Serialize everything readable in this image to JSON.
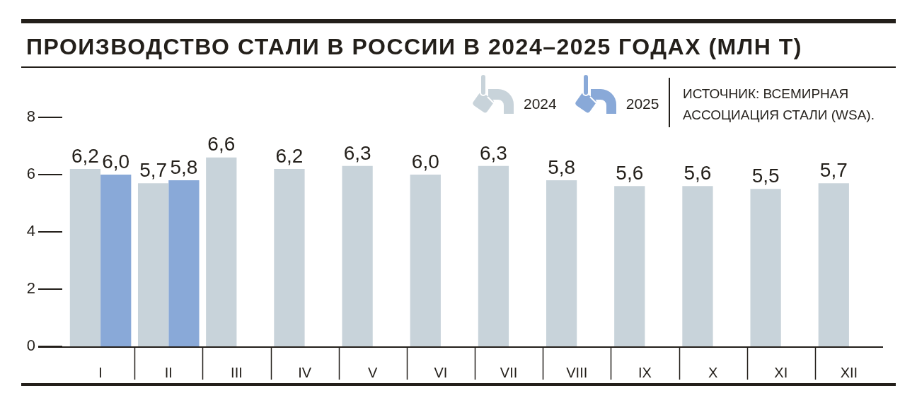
{
  "chart_data": {
    "type": "bar",
    "title": "ПРОИЗВОДСТВО СТАЛИ В РОССИИ В 2024–2025 ГОДАХ (МЛН Т)",
    "categories": [
      "I",
      "II",
      "III",
      "IV",
      "V",
      "VI",
      "VII",
      "VIII",
      "IX",
      "X",
      "XI",
      "XII"
    ],
    "series": [
      {
        "name": "2024",
        "color": "#c8d3da",
        "values": [
          6.2,
          5.7,
          6.6,
          6.2,
          6.3,
          6.0,
          6.3,
          5.8,
          5.6,
          5.6,
          5.5,
          5.7
        ],
        "value_labels": [
          "6,2",
          "5,7",
          "6,6",
          "6,2",
          "6,3",
          "6,0",
          "6,3",
          "5,8",
          "5,6",
          "5,6",
          "5,5",
          "5,7"
        ]
      },
      {
        "name": "2025",
        "color": "#89a9d8",
        "values": [
          6.0,
          5.8,
          null,
          null,
          null,
          null,
          null,
          null,
          null,
          null,
          null,
          null
        ],
        "value_labels": [
          "6,0",
          "5,8",
          null,
          null,
          null,
          null,
          null,
          null,
          null,
          null,
          null,
          null
        ]
      }
    ],
    "ylim": [
      0,
      8
    ],
    "yticks": [
      0,
      2,
      4,
      6,
      8
    ],
    "legend": "top right",
    "annotations": [
      "ИСТОЧНИК: ВСЕМИРНАЯ АССОЦИАЦИЯ СТАЛИ (WSA)."
    ]
  }
}
